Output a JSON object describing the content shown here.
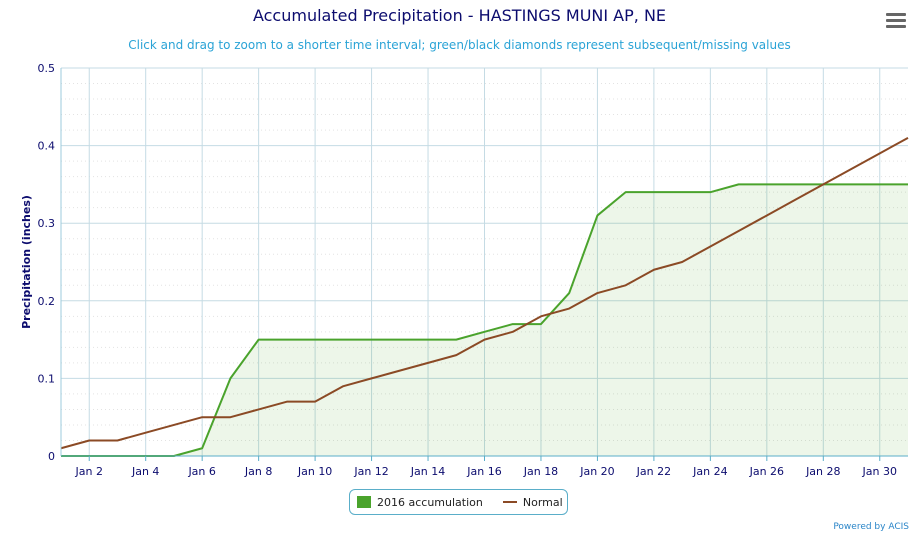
{
  "header": {
    "title": "Accumulated Precipitation - HASTINGS MUNI AP, NE",
    "subtitle": "Click and drag to zoom to a shorter time interval; green/black diamonds represent subsequent/missing values"
  },
  "footer": {
    "credit": "Powered by ACIS"
  },
  "colors": {
    "accumulation": "#4aa32c",
    "normal": "#8b4a25",
    "grid": "#c5dbe4",
    "axis_text": "#0c0c6e"
  },
  "chart_data": {
    "type": "line",
    "title": "Accumulated Precipitation - HASTINGS MUNI AP, NE",
    "ylabel": "Precipitation (inches)",
    "ylim": [
      0,
      0.5
    ],
    "yticks": [
      0,
      0.1,
      0.2,
      0.3,
      0.4,
      0.5
    ],
    "ytick_labels": [
      "0",
      "0.1",
      "0.2",
      "0.3",
      "0.4",
      "0.5"
    ],
    "xlim": [
      1,
      31
    ],
    "xtick_labels": [
      "Jan 2",
      "Jan 4",
      "Jan 6",
      "Jan 8",
      "Jan 10",
      "Jan 12",
      "Jan 14",
      "Jan 16",
      "Jan 18",
      "Jan 20",
      "Jan 22",
      "Jan 24",
      "Jan 26",
      "Jan 28",
      "Jan 30"
    ],
    "xticks": [
      2,
      4,
      6,
      8,
      10,
      12,
      14,
      16,
      18,
      20,
      22,
      24,
      26,
      28,
      30
    ],
    "grid": true,
    "legend_position": "bottom-center",
    "series": [
      {
        "name": "2016 accumulation",
        "style": "line-area",
        "x": [
          1,
          2,
          3,
          4,
          5,
          6,
          7,
          8,
          9,
          10,
          11,
          12,
          13,
          14,
          15,
          16,
          17,
          18,
          19,
          20,
          21,
          22,
          23,
          24,
          25,
          26,
          27,
          28,
          29,
          30,
          31
        ],
        "values": [
          0,
          0,
          0,
          0,
          0,
          0.01,
          0.1,
          0.15,
          0.15,
          0.15,
          0.15,
          0.15,
          0.15,
          0.15,
          0.15,
          0.16,
          0.17,
          0.17,
          0.21,
          0.31,
          0.34,
          0.34,
          0.34,
          0.34,
          0.35,
          0.35,
          0.35,
          0.35,
          0.35,
          0.35,
          0.35
        ]
      },
      {
        "name": "Normal",
        "style": "line",
        "x": [
          1,
          2,
          3,
          4,
          5,
          6,
          7,
          8,
          9,
          10,
          11,
          12,
          13,
          14,
          15,
          16,
          17,
          18,
          19,
          20,
          21,
          22,
          23,
          24,
          25,
          26,
          27,
          28,
          29,
          30,
          31
        ],
        "values": [
          0.01,
          0.02,
          0.02,
          0.03,
          0.04,
          0.05,
          0.05,
          0.06,
          0.07,
          0.07,
          0.09,
          0.1,
          0.11,
          0.12,
          0.13,
          0.15,
          0.16,
          0.18,
          0.19,
          0.21,
          0.22,
          0.24,
          0.25,
          0.27,
          0.29,
          0.31,
          0.33,
          0.35,
          0.37,
          0.39,
          0.41
        ]
      }
    ]
  }
}
